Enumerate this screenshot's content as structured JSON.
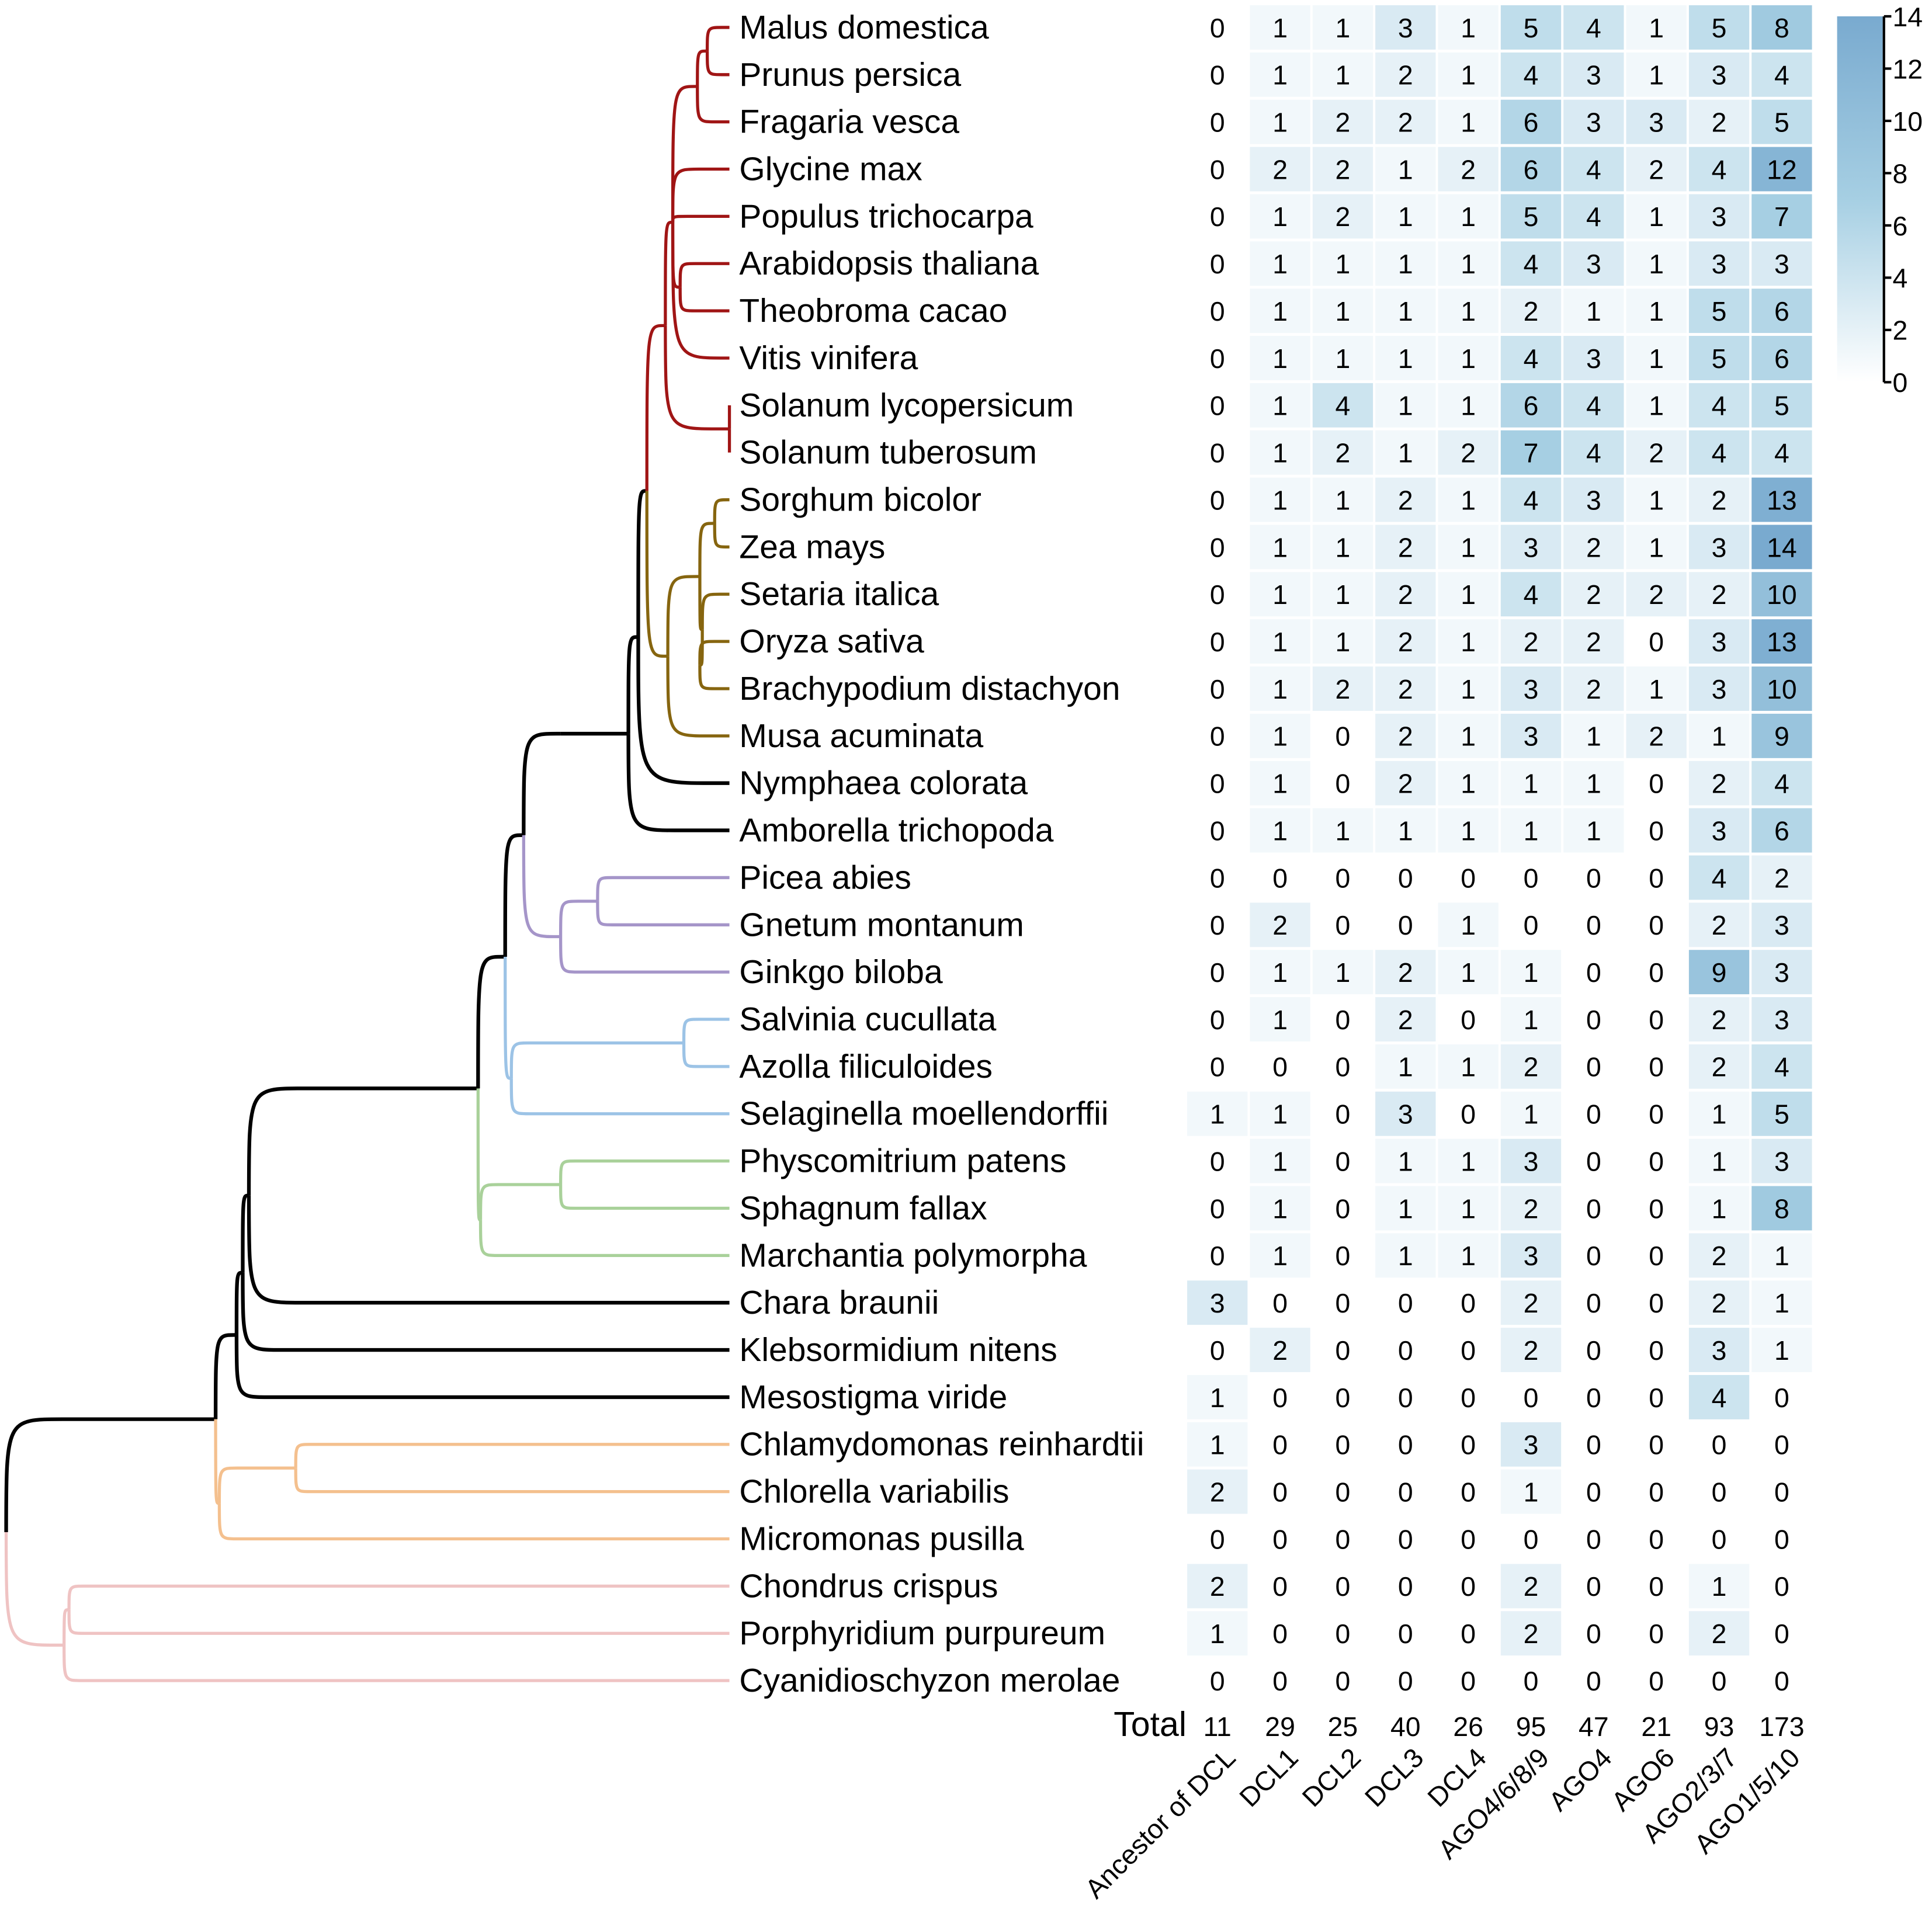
{
  "chart_data": {
    "type": "heatmap",
    "title": "",
    "columns": [
      "Ancestor of DCL",
      "DCL1",
      "DCL2",
      "DCL3",
      "DCL4",
      "AGO4/6/8/9",
      "AGO4",
      "AGO6",
      "AGO2/3/7",
      "AGO1/5/10"
    ],
    "rows": [
      {
        "species": "Malus domestica",
        "values": [
          0,
          1,
          1,
          3,
          1,
          5,
          4,
          1,
          5,
          8
        ]
      },
      {
        "species": "Prunus persica",
        "values": [
          0,
          1,
          1,
          2,
          1,
          4,
          3,
          1,
          3,
          4
        ]
      },
      {
        "species": "Fragaria vesca",
        "values": [
          0,
          1,
          2,
          2,
          1,
          6,
          3,
          3,
          2,
          5
        ]
      },
      {
        "species": "Glycine max",
        "values": [
          0,
          2,
          2,
          1,
          2,
          6,
          4,
          2,
          4,
          12
        ]
      },
      {
        "species": "Populus trichocarpa",
        "values": [
          0,
          1,
          2,
          1,
          1,
          5,
          4,
          1,
          3,
          7
        ]
      },
      {
        "species": "Arabidopsis thaliana",
        "values": [
          0,
          1,
          1,
          1,
          1,
          4,
          3,
          1,
          3,
          3
        ]
      },
      {
        "species": "Theobroma cacao",
        "values": [
          0,
          1,
          1,
          1,
          1,
          2,
          1,
          1,
          5,
          6
        ]
      },
      {
        "species": "Vitis vinifera",
        "values": [
          0,
          1,
          1,
          1,
          1,
          4,
          3,
          1,
          5,
          6
        ]
      },
      {
        "species": "Solanum lycopersicum",
        "values": [
          0,
          1,
          4,
          1,
          1,
          6,
          4,
          1,
          4,
          5
        ]
      },
      {
        "species": "Solanum tuberosum",
        "values": [
          0,
          1,
          2,
          1,
          2,
          7,
          4,
          2,
          4,
          4
        ]
      },
      {
        "species": "Sorghum bicolor",
        "values": [
          0,
          1,
          1,
          2,
          1,
          4,
          3,
          1,
          2,
          13
        ]
      },
      {
        "species": "Zea mays",
        "values": [
          0,
          1,
          1,
          2,
          1,
          3,
          2,
          1,
          3,
          14
        ]
      },
      {
        "species": "Setaria italica",
        "values": [
          0,
          1,
          1,
          2,
          1,
          4,
          2,
          2,
          2,
          10
        ]
      },
      {
        "species": "Oryza sativa",
        "values": [
          0,
          1,
          1,
          2,
          1,
          2,
          2,
          0,
          3,
          13
        ]
      },
      {
        "species": "Brachypodium distachyon",
        "values": [
          0,
          1,
          2,
          2,
          1,
          3,
          2,
          1,
          3,
          10
        ]
      },
      {
        "species": "Musa acuminata",
        "values": [
          0,
          1,
          0,
          2,
          1,
          3,
          1,
          2,
          1,
          9
        ]
      },
      {
        "species": "Nymphaea colorata",
        "values": [
          0,
          1,
          0,
          2,
          1,
          1,
          1,
          0,
          2,
          4
        ]
      },
      {
        "species": "Amborella trichopoda",
        "values": [
          0,
          1,
          1,
          1,
          1,
          1,
          1,
          0,
          3,
          6
        ]
      },
      {
        "species": "Picea abies",
        "values": [
          0,
          0,
          0,
          0,
          0,
          0,
          0,
          0,
          4,
          2
        ]
      },
      {
        "species": "Gnetum montanum",
        "values": [
          0,
          2,
          0,
          0,
          1,
          0,
          0,
          0,
          2,
          3
        ]
      },
      {
        "species": "Ginkgo biloba",
        "values": [
          0,
          1,
          1,
          2,
          1,
          1,
          0,
          0,
          9,
          3
        ]
      },
      {
        "species": "Salvinia cucullata",
        "values": [
          0,
          1,
          0,
          2,
          0,
          1,
          0,
          0,
          2,
          3
        ]
      },
      {
        "species": "Azolla filiculoides",
        "values": [
          0,
          0,
          0,
          1,
          1,
          2,
          0,
          0,
          2,
          4
        ]
      },
      {
        "species": "Selaginella moellendorffii",
        "values": [
          1,
          1,
          0,
          3,
          0,
          1,
          0,
          0,
          1,
          5
        ]
      },
      {
        "species": "Physcomitrium patens",
        "values": [
          0,
          1,
          0,
          1,
          1,
          3,
          0,
          0,
          1,
          3
        ]
      },
      {
        "species": "Sphagnum fallax",
        "values": [
          0,
          1,
          0,
          1,
          1,
          2,
          0,
          0,
          1,
          8
        ]
      },
      {
        "species": "Marchantia polymorpha",
        "values": [
          0,
          1,
          0,
          1,
          1,
          3,
          0,
          0,
          2,
          1
        ]
      },
      {
        "species": "Chara braunii",
        "values": [
          3,
          0,
          0,
          0,
          0,
          2,
          0,
          0,
          2,
          1
        ]
      },
      {
        "species": "Klebsormidium nitens",
        "values": [
          0,
          2,
          0,
          0,
          0,
          2,
          0,
          0,
          3,
          1
        ]
      },
      {
        "species": "Mesostigma viride",
        "values": [
          1,
          0,
          0,
          0,
          0,
          0,
          0,
          0,
          4,
          0
        ]
      },
      {
        "species": "Chlamydomonas reinhardtii",
        "values": [
          1,
          0,
          0,
          0,
          0,
          3,
          0,
          0,
          0,
          0
        ]
      },
      {
        "species": "Chlorella variabilis",
        "values": [
          2,
          0,
          0,
          0,
          0,
          1,
          0,
          0,
          0,
          0
        ]
      },
      {
        "species": "Micromonas pusilla",
        "values": [
          0,
          0,
          0,
          0,
          0,
          0,
          0,
          0,
          0,
          0
        ]
      },
      {
        "species": "Chondrus crispus",
        "values": [
          2,
          0,
          0,
          0,
          0,
          2,
          0,
          0,
          1,
          0
        ]
      },
      {
        "species": "Porphyridium purpureum",
        "values": [
          1,
          0,
          0,
          0,
          0,
          2,
          0,
          0,
          2,
          0
        ]
      },
      {
        "species": "Cyanidioschyzon merolae",
        "values": [
          0,
          0,
          0,
          0,
          0,
          0,
          0,
          0,
          0,
          0
        ]
      }
    ],
    "totals_label": "Total",
    "totals": [
      11,
      29,
      25,
      40,
      26,
      95,
      47,
      21,
      93,
      173
    ],
    "colorbar": {
      "min": 0,
      "max": 14,
      "ticks": [
        0,
        2,
        4,
        6,
        8,
        10,
        12,
        14
      ],
      "colors": [
        "#ffffff",
        "#a6cfe3",
        "#79aacf"
      ]
    },
    "clade_colors": {
      "eudicots": "#a01515",
      "monocots": "#86650f",
      "basal_angiosperms": "#bdbdbd",
      "gymnosperms": "#a595c9",
      "ferns_lycophytes": "#9cc3e6",
      "bryophytes": "#a9d19a",
      "streptophyte_algae": "#f8dc8a",
      "chlorophytes": "#f4c08e",
      "red_algae": "#efc3c3",
      "backbone": "#000000"
    }
  }
}
